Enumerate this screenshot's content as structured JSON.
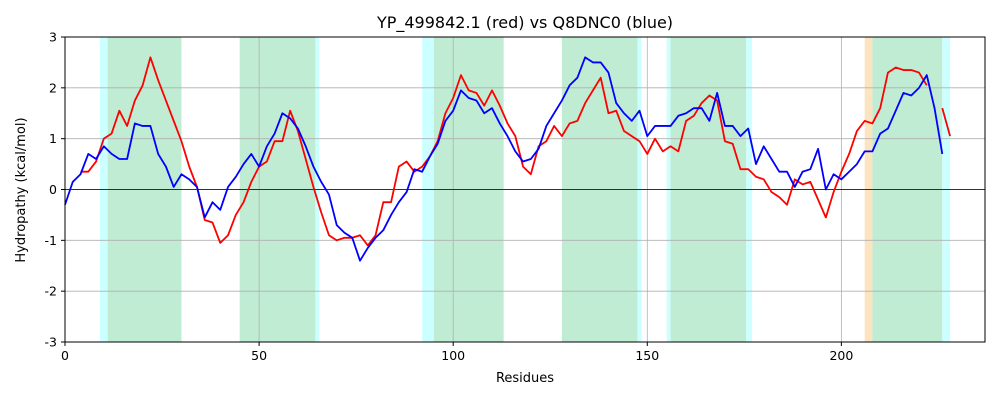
{
  "chart_data": {
    "type": "line",
    "title": "YP_499842.1 (red) vs Q8DNC0 (blue)",
    "xlabel": "Residues",
    "ylabel": "Hydropathy (kcal/mol)",
    "xlim": [
      0,
      237
    ],
    "ylim": [
      -3,
      3
    ],
    "xticks": [
      0,
      50,
      100,
      150,
      200
    ],
    "yticks": [
      -3,
      -2,
      -1,
      0,
      1,
      2,
      3
    ],
    "grid": true,
    "zero_line": true,
    "spans": [
      {
        "start": 9,
        "end": 11,
        "color": "#ccffff"
      },
      {
        "start": 11,
        "end": 30,
        "color": "#c0ecd4"
      },
      {
        "start": 45,
        "end": 64.5,
        "color": "#c0ecd4"
      },
      {
        "start": 64.5,
        "end": 65.5,
        "color": "#ccffff"
      },
      {
        "start": 92,
        "end": 95,
        "color": "#ccffff"
      },
      {
        "start": 95,
        "end": 113,
        "color": "#c0ecd4"
      },
      {
        "start": 128,
        "end": 147.5,
        "color": "#c0ecd4"
      },
      {
        "start": 147.5,
        "end": 148.5,
        "color": "#ccffff"
      },
      {
        "start": 155,
        "end": 156,
        "color": "#ccffff"
      },
      {
        "start": 156,
        "end": 175.5,
        "color": "#c0ecd4"
      },
      {
        "start": 175.5,
        "end": 177,
        "color": "#ccffff"
      },
      {
        "start": 206,
        "end": 208,
        "color": "#fde4c0"
      },
      {
        "start": 208,
        "end": 226,
        "color": "#c0ecd4"
      },
      {
        "start": 226,
        "end": 228,
        "color": "#ccffff"
      }
    ],
    "x": [
      0,
      2,
      4,
      6,
      8,
      10,
      12,
      14,
      16,
      18,
      20,
      22,
      24,
      26,
      28,
      30,
      32,
      34,
      36,
      38,
      40,
      42,
      44,
      46,
      48,
      50,
      52,
      54,
      56,
      58,
      60,
      62,
      64,
      66,
      68,
      70,
      72,
      74,
      76,
      78,
      80,
      82,
      84,
      86,
      88,
      90,
      92,
      94,
      96,
      98,
      100,
      102,
      104,
      106,
      108,
      110,
      112,
      114,
      116,
      118,
      120,
      122,
      124,
      126,
      128,
      130,
      132,
      134,
      136,
      138,
      140,
      142,
      144,
      146,
      148,
      150,
      152,
      154,
      156,
      158,
      160,
      162,
      164,
      166,
      168,
      170,
      172,
      174,
      176,
      178,
      180,
      182,
      184,
      186,
      188,
      190,
      192,
      194,
      196,
      198,
      200,
      202,
      204,
      206,
      208,
      210,
      212,
      214,
      216,
      218,
      220,
      222,
      224,
      226,
      228
    ],
    "series": [
      {
        "color": "#ff0000",
        "values": [
          null,
          null,
          0.35,
          0.35,
          0.55,
          1.0,
          1.1,
          1.55,
          1.25,
          1.75,
          2.05,
          2.6,
          2.15,
          1.75,
          1.35,
          0.95,
          0.45,
          0.05,
          -0.6,
          -0.65,
          -1.05,
          -0.9,
          -0.5,
          -0.25,
          0.15,
          0.45,
          0.55,
          0.95,
          0.95,
          1.55,
          1.15,
          0.6,
          0.05,
          -0.45,
          -0.9,
          -1.0,
          -0.95,
          -0.95,
          -0.9,
          -1.1,
          -0.9,
          -0.25,
          -0.25,
          0.45,
          0.55,
          0.35,
          0.45,
          0.65,
          0.95,
          1.5,
          1.8,
          2.25,
          1.95,
          1.9,
          1.65,
          1.95,
          1.65,
          1.3,
          1.05,
          0.45,
          0.3,
          0.85,
          0.95,
          1.25,
          1.05,
          1.3,
          1.35,
          1.7,
          1.95,
          2.2,
          1.5,
          1.55,
          1.15,
          1.05,
          0.95,
          0.7,
          1.0,
          0.75,
          0.85,
          0.75,
          1.35,
          1.45,
          1.7,
          1.85,
          1.75,
          0.95,
          0.9,
          0.4,
          0.4,
          0.25,
          0.2,
          -0.05,
          -0.15,
          -0.3,
          0.2,
          0.1,
          0.15,
          -0.2,
          -0.55,
          -0.05,
          0.35,
          0.7,
          1.15,
          1.35,
          1.3,
          1.6,
          2.3,
          2.4,
          2.35,
          2.35,
          2.3,
          2.05,
          null,
          1.6,
          1.05
        ]
      },
      {
        "color": "#0000ff",
        "values": [
          -0.3,
          0.15,
          0.3,
          0.7,
          0.6,
          0.85,
          0.7,
          0.6,
          0.6,
          1.3,
          1.25,
          1.25,
          0.7,
          0.45,
          0.05,
          0.3,
          0.2,
          0.05,
          -0.55,
          -0.25,
          -0.4,
          0.05,
          0.25,
          0.5,
          0.7,
          0.45,
          0.85,
          1.1,
          1.5,
          1.4,
          1.2,
          0.85,
          0.45,
          0.15,
          -0.1,
          -0.7,
          -0.85,
          -0.95,
          -1.4,
          -1.15,
          -0.95,
          -0.8,
          -0.5,
          -0.25,
          -0.05,
          0.4,
          0.35,
          0.65,
          0.9,
          1.35,
          1.55,
          1.95,
          1.8,
          1.75,
          1.5,
          1.6,
          1.3,
          1.05,
          0.75,
          0.55,
          0.6,
          0.8,
          1.25,
          1.5,
          1.75,
          2.05,
          2.2,
          2.6,
          2.5,
          2.5,
          2.3,
          1.7,
          1.5,
          1.35,
          1.55,
          1.05,
          1.25,
          1.25,
          1.25,
          1.45,
          1.5,
          1.6,
          1.6,
          1.35,
          1.9,
          1.25,
          1.25,
          1.05,
          1.2,
          0.5,
          0.85,
          0.6,
          0.35,
          0.35,
          0.05,
          0.35,
          0.4,
          0.8,
          0.0,
          0.3,
          0.2,
          0.35,
          0.5,
          0.75,
          0.75,
          1.1,
          1.2,
          1.55,
          1.9,
          1.85,
          2.0,
          2.25,
          1.6,
          0.7,
          null
        ]
      }
    ]
  }
}
